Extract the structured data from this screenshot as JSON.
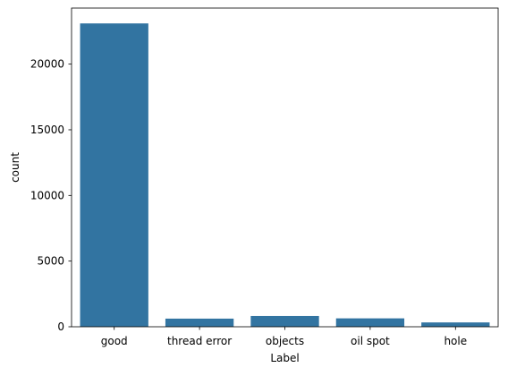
{
  "chart_data": {
    "type": "bar",
    "title": "",
    "xlabel": "Label",
    "ylabel": "count",
    "categories": [
      "good",
      "thread error",
      "objects",
      "oil spot",
      "hole"
    ],
    "values": [
      23100,
      620,
      820,
      640,
      330
    ],
    "ylim": [
      0,
      24270
    ],
    "yticks": [
      0,
      5000,
      10000,
      15000,
      20000
    ],
    "grid": false,
    "legend": "none",
    "bar_color": "#3274a1"
  }
}
